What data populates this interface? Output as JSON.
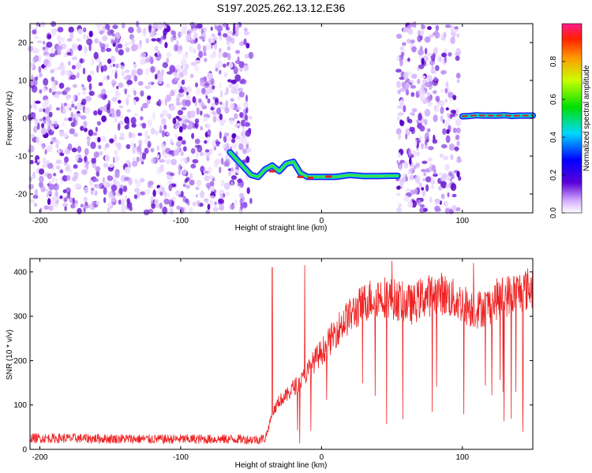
{
  "title": "S197.2025.262.13.12.E36",
  "chart_data": [
    {
      "type": "heatmap",
      "xlabel": "Height of straight line (km)",
      "ylabel": "Frequency (Hz)",
      "xlim": [
        -207,
        150
      ],
      "ylim": [
        -25,
        25
      ],
      "xticks": [
        -200,
        -100,
        0,
        100
      ],
      "yticks": [
        -20,
        -10,
        0,
        10,
        20
      ],
      "noise_regions_km": [
        [
          -207,
          -50
        ],
        [
          54,
          98
        ]
      ],
      "trace": {
        "x": [
          -65,
          -60,
          -55,
          -50,
          -45,
          -40,
          -35,
          -30,
          -25,
          -20,
          -15,
          -10,
          -5,
          0,
          10,
          20,
          30,
          40,
          50,
          54
        ],
        "y": [
          -9,
          -11,
          -13,
          -15,
          -15.5,
          -13.5,
          -12.5,
          -14,
          -12,
          -11.5,
          -14.5,
          -15.5,
          -15.5,
          -15.5,
          -15.5,
          -15,
          -15.3,
          -15.3,
          -15.2,
          -15.2
        ]
      },
      "trace2": {
        "x": [
          100,
          105,
          110,
          115,
          120,
          125,
          130,
          135,
          140,
          145,
          150
        ],
        "y": [
          0.5,
          0.6,
          0.8,
          0.7,
          0.7,
          0.7,
          0.8,
          0.6,
          0.7,
          0.7,
          0.7
        ]
      }
    },
    {
      "type": "colorbar",
      "label": "Normalized spectral amplitude",
      "range": [
        0.0,
        1.0
      ],
      "ticks": [
        0.0,
        0.2,
        0.4,
        0.6,
        0.8
      ]
    },
    {
      "type": "line",
      "xlabel": "Height of straight line (km)",
      "ylabel": "SNR (10 * v/v)",
      "xlim": [
        -207,
        150
      ],
      "ylim": [
        0,
        430
      ],
      "xticks": [
        -200,
        -100,
        0,
        100
      ],
      "yticks": [
        0,
        100,
        200,
        300,
        400
      ],
      "color": "#ee2222",
      "series": [
        {
          "name": "SNR",
          "x": [
            -207,
            -180,
            -150,
            -120,
            -90,
            -60,
            -45,
            -40,
            -38,
            -35,
            -30,
            -25,
            -20,
            -15,
            -10,
            -5,
            0,
            5,
            10,
            15,
            20,
            25,
            30,
            35,
            40,
            45,
            50,
            55,
            60,
            65,
            70,
            75,
            80,
            85,
            90,
            95,
            100,
            105,
            110,
            115,
            120,
            125,
            130,
            135,
            140,
            145,
            150
          ],
          "values": [
            25,
            25,
            24,
            23,
            23,
            23,
            22,
            25,
            45,
            80,
            110,
            120,
            140,
            150,
            175,
            200,
            220,
            240,
            265,
            285,
            300,
            315,
            330,
            340,
            345,
            345,
            340,
            335,
            330,
            325,
            340,
            345,
            350,
            352,
            345,
            335,
            330,
            320,
            315,
            320,
            325,
            340,
            345,
            350,
            355,
            360,
            365
          ]
        }
      ],
      "spikes": [
        {
          "x": -35,
          "y": 410
        },
        {
          "x": -12,
          "y": 415
        },
        {
          "x": 50,
          "y": 425
        },
        {
          "x": 108,
          "y": 420
        }
      ]
    }
  ]
}
